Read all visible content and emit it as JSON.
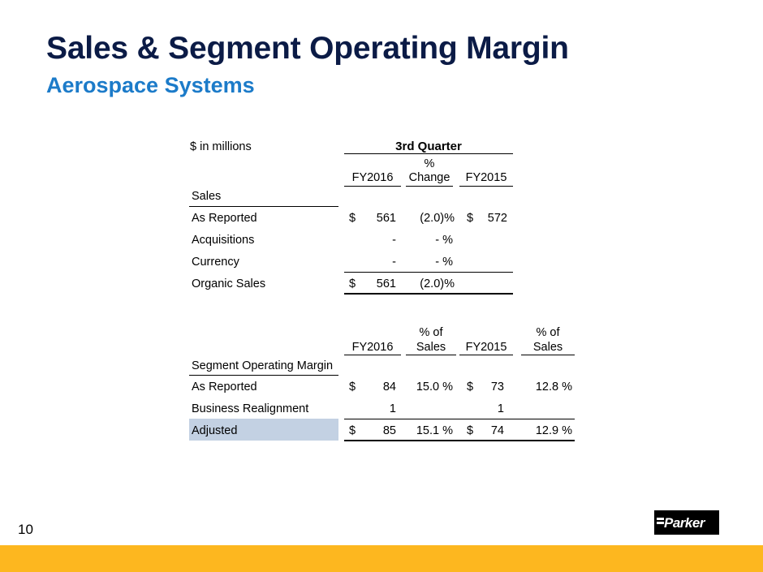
{
  "title": "Sales & Segment Operating Margin",
  "subtitle": "Aerospace Systems",
  "units": "$  in millions",
  "sales_table": {
    "period_header": "3rd  Quarter",
    "col_fy2016": "FY2016",
    "col_change_line1": "%",
    "col_change_line2": "Change",
    "col_fy2015": "FY2015",
    "section_label": "Sales",
    "rows": [
      {
        "label": "As Reported",
        "cur": "$",
        "fy2016": "561",
        "change": "(2.0)%",
        "cur2": "$",
        "fy2015": "572"
      },
      {
        "label": "Acquisitions",
        "cur": "",
        "fy2016": "-",
        "change": "- %",
        "cur2": "",
        "fy2015": ""
      },
      {
        "label": "Currency",
        "cur": "",
        "fy2016": "-",
        "change": "- %",
        "cur2": "",
        "fy2015": ""
      },
      {
        "label": "Organic Sales",
        "cur": "$",
        "fy2016": "561",
        "change": "(2.0)%",
        "cur2": "",
        "fy2015": ""
      }
    ]
  },
  "margin_table": {
    "col_fy2016": "FY2016",
    "col_pct1_line1": "% of",
    "col_pct1_line2": "Sales",
    "col_fy2015": "FY2015",
    "col_pct2_line1": "% of",
    "col_pct2_line2": "Sales",
    "section_label": "Segment Operating Margin",
    "rows": [
      {
        "label": "As Reported",
        "cur": "$",
        "fy2016": "84",
        "pct1": "15.0 %",
        "cur2": "$",
        "fy2015": "73",
        "pct2": "12.8 %"
      },
      {
        "label": "Business Realignment",
        "cur": "",
        "fy2016": "1",
        "pct1": "",
        "cur2": "",
        "fy2015": "1",
        "pct2": ""
      },
      {
        "label": "Adjusted",
        "cur": "$",
        "fy2016": "85",
        "pct1": "15.1 %",
        "cur2": "$",
        "fy2015": "74",
        "pct2": "12.9 %"
      }
    ]
  },
  "page_number": "10",
  "logo_text": "Parker",
  "colors": {
    "title": "#0b1b46",
    "subtitle": "#1c7bc9",
    "highlight": "#c3d1e3",
    "footer": "#fdb71f"
  }
}
